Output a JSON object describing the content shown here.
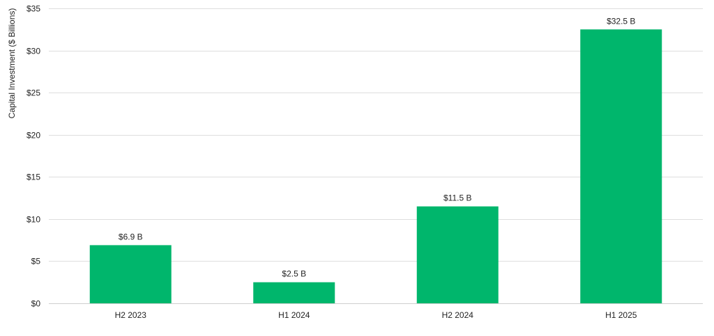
{
  "chart_data": {
    "type": "bar",
    "categories": [
      "H2 2023",
      "H1 2024",
      "H2 2024",
      "H1 2025"
    ],
    "values": [
      6.9,
      2.5,
      11.5,
      32.5
    ],
    "data_labels": [
      "$6.9 B",
      "$2.5 B",
      "$11.5 B",
      "$32.5 B"
    ],
    "title": "",
    "xlabel": "",
    "ylabel": "Capital Investment ($ Billions)",
    "ylim": [
      0,
      35
    ],
    "yticks": [
      0,
      5,
      10,
      15,
      20,
      25,
      30,
      35
    ],
    "ytick_labels": [
      "$0",
      "$5",
      "$10",
      "$15",
      "$20",
      "$25",
      "$30",
      "$35"
    ],
    "grid": true,
    "legend": "none",
    "bar_color": "#00b66c"
  }
}
